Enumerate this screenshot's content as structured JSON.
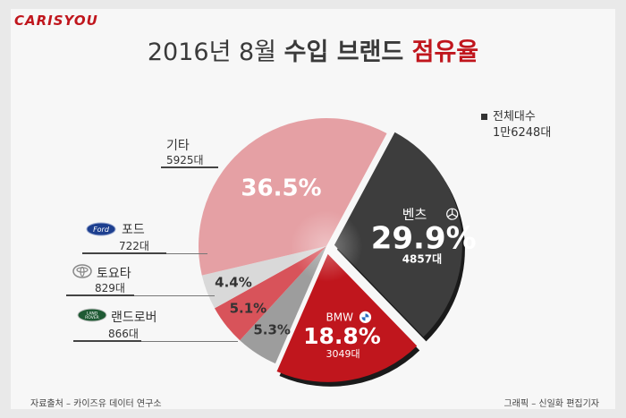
{
  "logo": "CARISYOU",
  "title": {
    "plain": "2016년 8월 ",
    "bold": "수입 브랜드 ",
    "highlight": "점유율"
  },
  "total": {
    "label": "전체대수",
    "value": "1만6248대"
  },
  "chart_data": {
    "type": "pie",
    "title": "2016년 8월 수입 브랜드 점유율",
    "slices": [
      {
        "name": "벤츠",
        "percent": 29.9,
        "units": "4857대",
        "color": "#3d3d3d",
        "icon": "mercedes-logo-icon"
      },
      {
        "name": "BMW",
        "percent": 18.8,
        "units": "3049대",
        "color": "#c0161d",
        "icon": "bmw-logo-icon"
      },
      {
        "name": "랜드로버",
        "percent": 5.3,
        "units": "866대",
        "color": "#9d9d9d",
        "icon": "land-rover-logo-icon"
      },
      {
        "name": "토요타",
        "percent": 5.1,
        "units": "829대",
        "color": "#d8535a",
        "icon": "toyota-logo-icon"
      },
      {
        "name": "포드",
        "percent": 4.4,
        "units": "722대",
        "color": "#d9d9d9",
        "icon": "ford-logo-icon"
      },
      {
        "name": "기타",
        "percent": 36.5,
        "units": "5925대",
        "color": "#e5a0a4"
      }
    ],
    "percent_labels": [
      "29.9%",
      "18.8%",
      "5.3%",
      "5.1%",
      "4.4%",
      "36.5%"
    ]
  },
  "footer": {
    "source": "자료출처 – 카이즈유 데이터 연구소",
    "credit": "그래픽 – 신일화 편집기자"
  }
}
